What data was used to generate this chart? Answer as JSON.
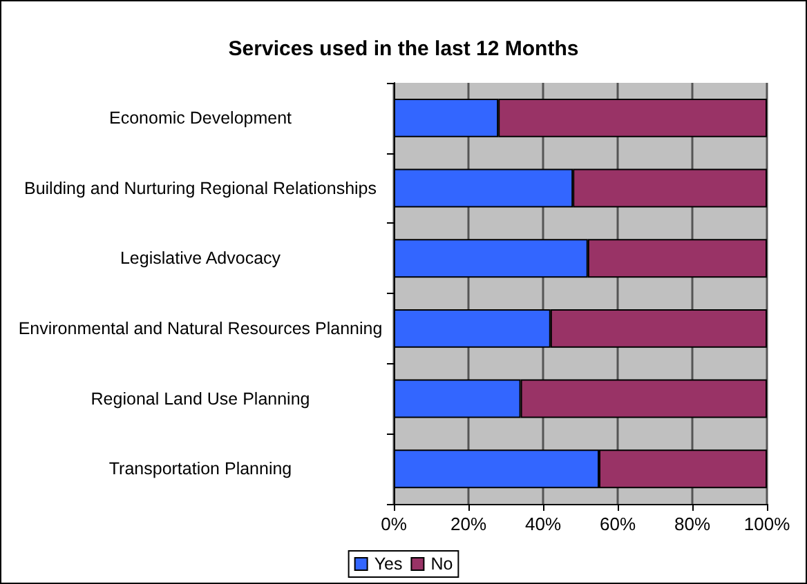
{
  "chart_data": {
    "type": "bar",
    "orientation": "horizontal",
    "stacked": true,
    "title": "Services used in the last 12 Months",
    "categories": [
      "Economic Development",
      "Building and Nurturing Regional Relationships",
      "Legislative Advocacy",
      "Environmental and Natural Resources Planning",
      "Regional Land Use Planning",
      "Transportation Planning"
    ],
    "series": [
      {
        "name": "Yes",
        "color": "#3366ff",
        "values": [
          28,
          48,
          52,
          42,
          34,
          55
        ]
      },
      {
        "name": "No",
        "color": "#993366",
        "values": [
          72,
          52,
          48,
          58,
          66,
          45
        ]
      }
    ],
    "xlim": [
      0,
      100
    ],
    "xticks": [
      {
        "value": 0,
        "label": "0%"
      },
      {
        "value": 20,
        "label": "20%"
      },
      {
        "value": 40,
        "label": "40%"
      },
      {
        "value": 60,
        "label": "60%"
      },
      {
        "value": 80,
        "label": "80%"
      },
      {
        "value": 100,
        "label": "100%"
      }
    ],
    "grid": "x",
    "legend": "bottom"
  }
}
